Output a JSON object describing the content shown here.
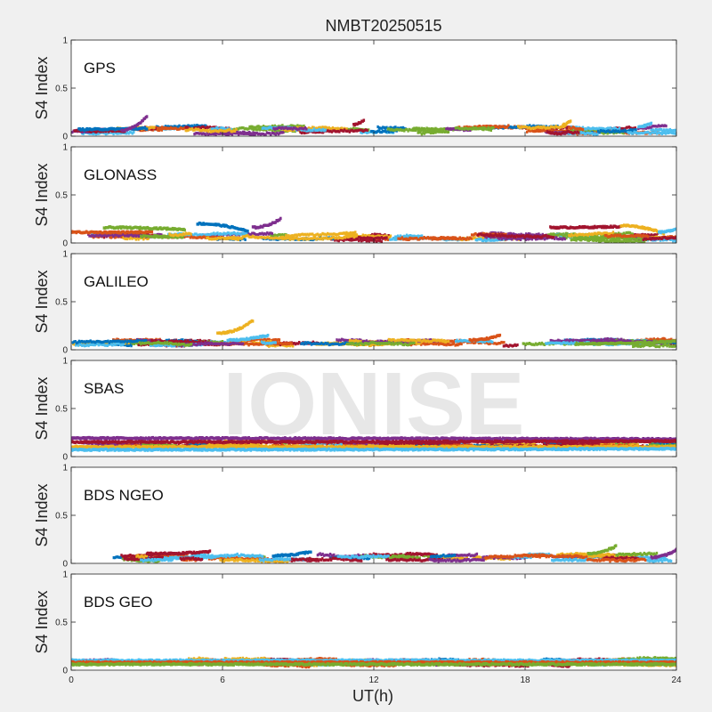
{
  "title": "NMBT20250515",
  "watermark": "IONISE",
  "xlabel": "UT(h)",
  "ylabel": "S4 Index",
  "colors": [
    "#0072BD",
    "#D95319",
    "#EDB120",
    "#7E2F8E",
    "#77AC30",
    "#4DBEEE",
    "#A2142F"
  ],
  "chart_data": {
    "type": "scatter",
    "xlim": [
      0,
      24
    ],
    "ylim": [
      0,
      1
    ],
    "x_ticks": [
      "0",
      "6",
      "12",
      "18",
      "24"
    ],
    "y_ticks": [
      "0",
      "0.5",
      "1"
    ],
    "grid": false,
    "panels": [
      {
        "name": "GPS",
        "base_level": 0.06,
        "series": [
          {
            "x": [
              0.3,
              3.0
            ],
            "y": [
              0.07,
              0.08
            ]
          },
          {
            "x": [
              2.0,
              3.0
            ],
            "y": [
              0.06,
              0.21
            ]
          },
          {
            "x": [
              11.2,
              11.6
            ],
            "y": [
              0.12,
              0.17
            ]
          },
          {
            "x": [
              19.5,
              19.8
            ],
            "y": [
              0.12,
              0.16
            ]
          },
          {
            "x": [
              22.5,
              23.0
            ],
            "y": [
              0.1,
              0.13
            ]
          }
        ]
      },
      {
        "name": "GLONASS",
        "base_level": 0.06,
        "series": [
          {
            "x": [
              0.0,
              3.2
            ],
            "y": [
              0.11,
              0.11
            ]
          },
          {
            "x": [
              1.3,
              4.5
            ],
            "y": [
              0.16,
              0.14
            ]
          },
          {
            "x": [
              5.0,
              7.0
            ],
            "y": [
              0.2,
              0.12
            ]
          },
          {
            "x": [
              7.2,
              8.3
            ],
            "y": [
              0.16,
              0.25
            ]
          },
          {
            "x": [
              19.0,
              21.8
            ],
            "y": [
              0.16,
              0.17
            ]
          },
          {
            "x": [
              21.8,
              23.5
            ],
            "y": [
              0.18,
              0.1
            ]
          },
          {
            "x": [
              23.3,
              24.0
            ],
            "y": [
              0.11,
              0.15
            ]
          }
        ]
      },
      {
        "name": "GALILEO",
        "base_level": 0.07,
        "series": [
          {
            "x": [
              5.8,
              7.2
            ],
            "y": [
              0.17,
              0.3
            ]
          },
          {
            "x": [
              6.2,
              7.8
            ],
            "y": [
              0.1,
              0.15
            ]
          },
          {
            "x": [
              15.8,
              17.0
            ],
            "y": [
              0.1,
              0.15
            ]
          },
          {
            "x": [
              20.0,
              24.0
            ],
            "y": [
              0.06,
              0.09
            ]
          }
        ]
      },
      {
        "name": "SBAS",
        "base_level": 0.12,
        "series": [
          {
            "x": [
              0,
              24
            ],
            "y": [
              0.19,
              0.18
            ]
          },
          {
            "x": [
              0,
              24
            ],
            "y": [
              0.15,
              0.16
            ]
          },
          {
            "x": [
              0,
              24
            ],
            "y": [
              0.1,
              0.1
            ]
          },
          {
            "x": [
              0,
              24
            ],
            "y": [
              0.07,
              0.08
            ]
          }
        ]
      },
      {
        "name": "BDS NGEO",
        "base_level": 0.06,
        "series": [
          {
            "x": [
              20.5,
              21.6
            ],
            "y": [
              0.1,
              0.18
            ]
          },
          {
            "x": [
              8.0,
              9.5
            ],
            "y": [
              0.08,
              0.12
            ]
          },
          {
            "x": [
              23.0,
              24.0
            ],
            "y": [
              0.06,
              0.14
            ]
          },
          {
            "x": [
              3.0,
              5.5
            ],
            "y": [
              0.1,
              0.12
            ]
          }
        ]
      },
      {
        "name": "BDS GEO",
        "base_level": 0.08,
        "series": [
          {
            "x": [
              0,
              24
            ],
            "y": [
              0.1,
              0.1
            ]
          },
          {
            "x": [
              0,
              24
            ],
            "y": [
              0.08,
              0.08
            ]
          },
          {
            "x": [
              0,
              24
            ],
            "y": [
              0.06,
              0.06
            ]
          }
        ]
      }
    ]
  }
}
